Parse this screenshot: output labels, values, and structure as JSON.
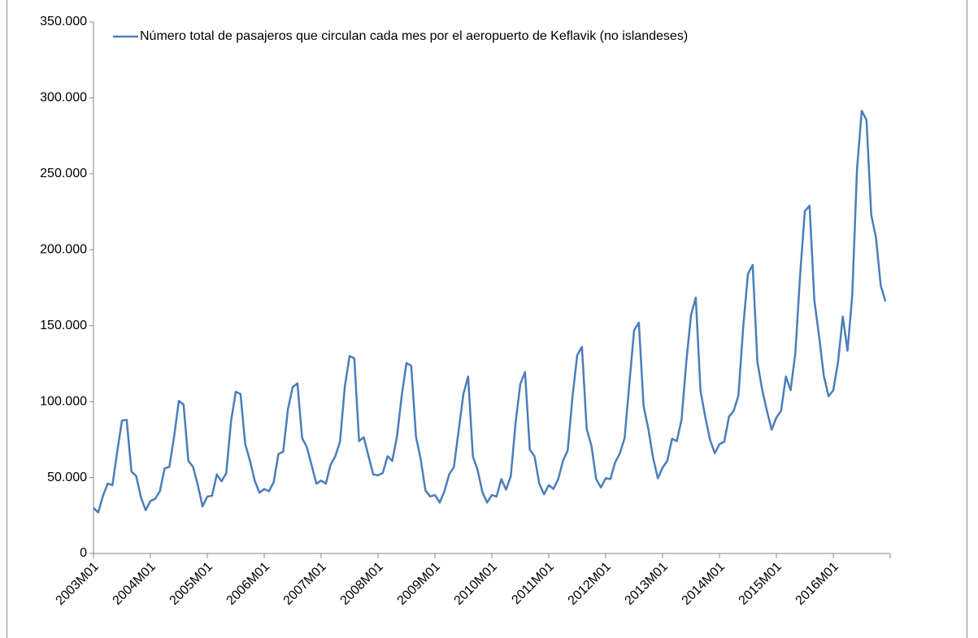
{
  "chart_data": {
    "type": "line",
    "categories": [
      "2003M01",
      null,
      null,
      null,
      null,
      null,
      null,
      null,
      null,
      null,
      null,
      null,
      "2004M01",
      null,
      null,
      null,
      null,
      null,
      null,
      null,
      null,
      null,
      null,
      null,
      "2005M01",
      null,
      null,
      null,
      null,
      null,
      null,
      null,
      null,
      null,
      null,
      null,
      "2006M01",
      null,
      null,
      null,
      null,
      null,
      null,
      null,
      null,
      null,
      null,
      null,
      "2007M01",
      null,
      null,
      null,
      null,
      null,
      null,
      null,
      null,
      null,
      null,
      null,
      "2008M01",
      null,
      null,
      null,
      null,
      null,
      null,
      null,
      null,
      null,
      null,
      null,
      "2009M01",
      null,
      null,
      null,
      null,
      null,
      null,
      null,
      null,
      null,
      null,
      null,
      "2010M01",
      null,
      null,
      null,
      null,
      null,
      null,
      null,
      null,
      null,
      null,
      null,
      "2011M01",
      null,
      null,
      null,
      null,
      null,
      null,
      null,
      null,
      null,
      null,
      null,
      "2012M01",
      null,
      null,
      null,
      null,
      null,
      null,
      null,
      null,
      null,
      null,
      null,
      "2013M01",
      null,
      null,
      null,
      null,
      null,
      null,
      null,
      null,
      null,
      null,
      null,
      "2014M01",
      null,
      null,
      null,
      null,
      null,
      null,
      null,
      null,
      null,
      null,
      null,
      "2015M01",
      null,
      null,
      null,
      null,
      null,
      null,
      null,
      null,
      null,
      null,
      null,
      "2016M01",
      null,
      null,
      null,
      null,
      null,
      null,
      null,
      null,
      null,
      null,
      null
    ],
    "series": [
      {
        "name": "Número total de pasajeros que circulan cada mes por el aeropuerto de Keflavik (no islandeses)",
        "color": "#4a7ebb",
        "values": [
          30000,
          27000,
          38000,
          46000,
          45000,
          67000,
          87500,
          88000,
          54000,
          51000,
          37000,
          28500,
          34500,
          36000,
          41000,
          56000,
          57000,
          77000,
          100500,
          98000,
          61000,
          57000,
          45000,
          31000,
          37500,
          38000,
          52000,
          47500,
          53000,
          87000,
          106500,
          105000,
          72000,
          61000,
          48000,
          40000,
          42500,
          41000,
          47000,
          65500,
          67000,
          95000,
          109500,
          112000,
          76000,
          70000,
          58000,
          46000,
          48000,
          46000,
          58500,
          64000,
          74000,
          110000,
          130000,
          128500,
          74000,
          76500,
          64000,
          52000,
          51500,
          53000,
          64000,
          61000,
          77000,
          104000,
          125500,
          123500,
          77000,
          62000,
          41500,
          37500,
          38500,
          33500,
          41000,
          52000,
          57000,
          81000,
          105000,
          116500,
          64000,
          55000,
          40500,
          33500,
          38500,
          37500,
          49000,
          42000,
          51000,
          86000,
          111500,
          119500,
          68500,
          64000,
          46000,
          39000,
          45000,
          42500,
          49000,
          61000,
          68000,
          103000,
          130500,
          136000,
          82000,
          71000,
          49000,
          43500,
          49500,
          49000,
          60000,
          66000,
          76000,
          112000,
          147000,
          152000,
          97000,
          82000,
          63000,
          49500,
          56500,
          61000,
          75500,
          74000,
          88000,
          126000,
          157000,
          168500,
          107000,
          90000,
          75000,
          66000,
          72000,
          73500,
          90000,
          94000,
          104000,
          149000,
          184000,
          190000,
          126000,
          108000,
          94000,
          81500,
          89500,
          94000,
          116500,
          107500,
          132000,
          183000,
          225500,
          229000,
          167000,
          143000,
          117000,
          103500,
          107500,
          126000,
          156000,
          133500,
          170000,
          253000,
          291500,
          285500,
          223000,
          208000,
          176500,
          166000
        ]
      }
    ],
    "ylim": [
      0,
      350000
    ],
    "yticks": [
      0,
      {
        "value": 50000,
        "label": "50.000"
      },
      {
        "value": 100000,
        "label": "100.000"
      },
      {
        "value": 150000,
        "label": "150.000"
      },
      {
        "value": 200000,
        "label": "200.000"
      },
      {
        "value": 250000,
        "label": "250.000"
      },
      {
        "value": 300000,
        "label": "300.000"
      },
      {
        "value": 350000,
        "label": "350.000"
      }
    ],
    "grid": false,
    "legend": "top-left"
  }
}
